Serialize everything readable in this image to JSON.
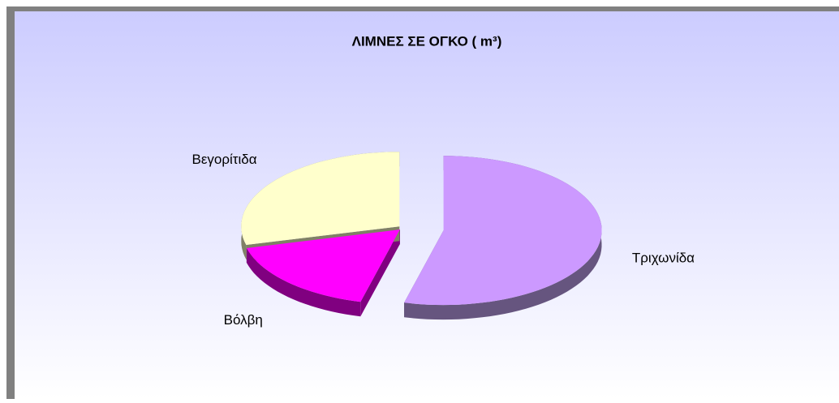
{
  "chart_data": {
    "type": "pie",
    "title": "ΛΙΜΝΕΣ ΣΕ ΟΓΚΟ ( m³)",
    "categories": [
      "Τριχωνίδα",
      "Βόλβη",
      "Βεγορίτιδα"
    ],
    "values": [
      54,
      17,
      29
    ],
    "colors": [
      "#cc99ff",
      "#ff00ff",
      "#ffffcc"
    ],
    "side_colors": [
      "#66557f",
      "#800080",
      "#808066"
    ]
  }
}
